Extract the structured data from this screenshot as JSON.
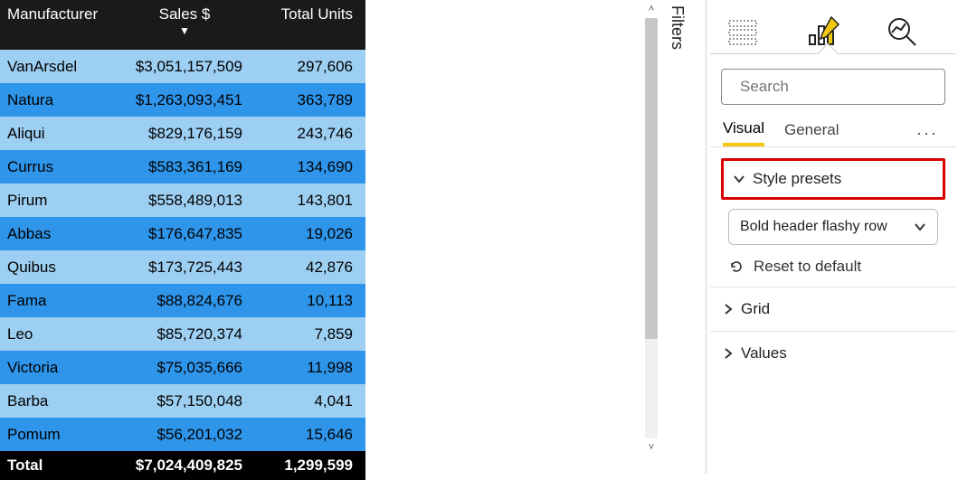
{
  "table": {
    "header_bg": "#1a1a1a",
    "row_colors": [
      "#9dcff2",
      "#2f95ea"
    ],
    "total_bg": "#000000",
    "columns": [
      {
        "key": "mfr",
        "label": "Manufacturer",
        "align": "left"
      },
      {
        "key": "sales",
        "label": "Sales $",
        "align": "right",
        "sorted_desc": true
      },
      {
        "key": "units",
        "label": "Total Units",
        "align": "right"
      }
    ],
    "rows": [
      {
        "mfr": "VanArsdel",
        "sales": "$3,051,157,509",
        "units": "297,606"
      },
      {
        "mfr": "Natura",
        "sales": "$1,263,093,451",
        "units": "363,789"
      },
      {
        "mfr": "Aliqui",
        "sales": "$829,176,159",
        "units": "243,746"
      },
      {
        "mfr": "Currus",
        "sales": "$583,361,169",
        "units": "134,690"
      },
      {
        "mfr": "Pirum",
        "sales": "$558,489,013",
        "units": "143,801"
      },
      {
        "mfr": "Abbas",
        "sales": "$176,647,835",
        "units": "19,026"
      },
      {
        "mfr": "Quibus",
        "sales": "$173,725,443",
        "units": "42,876"
      },
      {
        "mfr": "Fama",
        "sales": "$88,824,676",
        "units": "10,113"
      },
      {
        "mfr": "Leo",
        "sales": "$85,720,374",
        "units": "7,859"
      },
      {
        "mfr": "Victoria",
        "sales": "$75,035,666",
        "units": "11,998"
      },
      {
        "mfr": "Barba",
        "sales": "$57,150,048",
        "units": "4,041"
      },
      {
        "mfr": "Pomum",
        "sales": "$56,201,032",
        "units": "15,646"
      }
    ],
    "total": {
      "label": "Total",
      "sales": "$7,024,409,825",
      "units": "1,299,599"
    }
  },
  "filters_label": "Filters",
  "format_pane": {
    "search_placeholder": "Search",
    "tabs": {
      "visual": "Visual",
      "general": "General"
    },
    "style_presets_label": "Style presets",
    "style_preset_value": "Bold header flashy row",
    "reset_label": "Reset to default",
    "sections": {
      "grid": "Grid",
      "values": "Values"
    }
  }
}
